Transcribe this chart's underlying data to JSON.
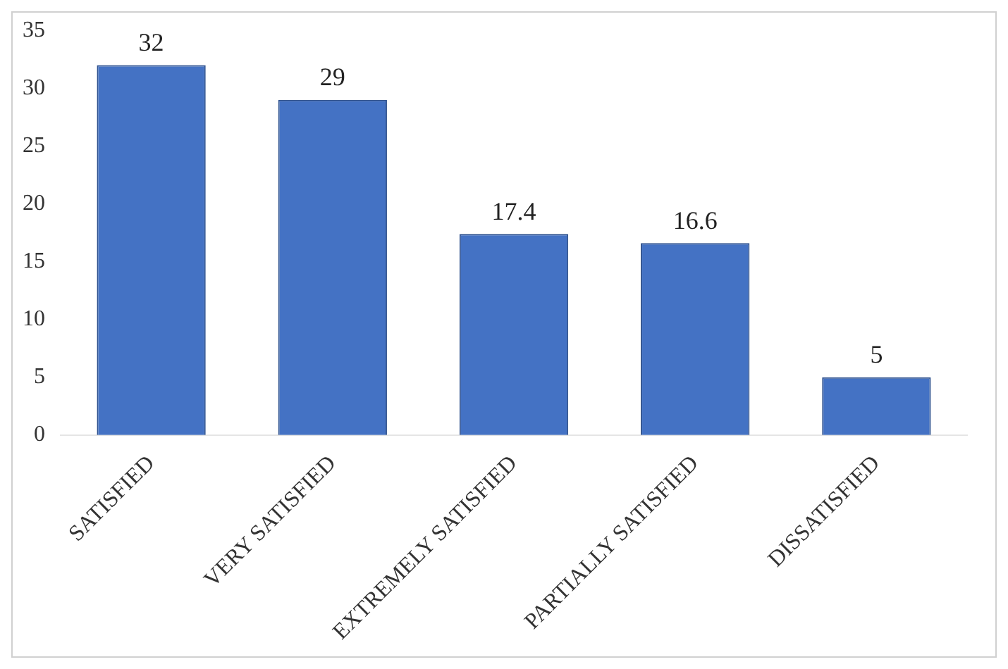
{
  "chart_data": {
    "type": "bar",
    "categories": [
      "SATISFIED",
      "VERY SATISFIED",
      "EXTREMELY SATISFIED",
      "PARTIALLY SATISFIED",
      "DISSATISFIED"
    ],
    "values": [
      32,
      29,
      17.4,
      16.6,
      5
    ],
    "color": "#4472c4",
    "ylim": [
      0,
      35
    ],
    "yticks": [
      0,
      5,
      10,
      15,
      20,
      25,
      30,
      35
    ],
    "data_labels": true,
    "grid": false,
    "legend": false
  }
}
